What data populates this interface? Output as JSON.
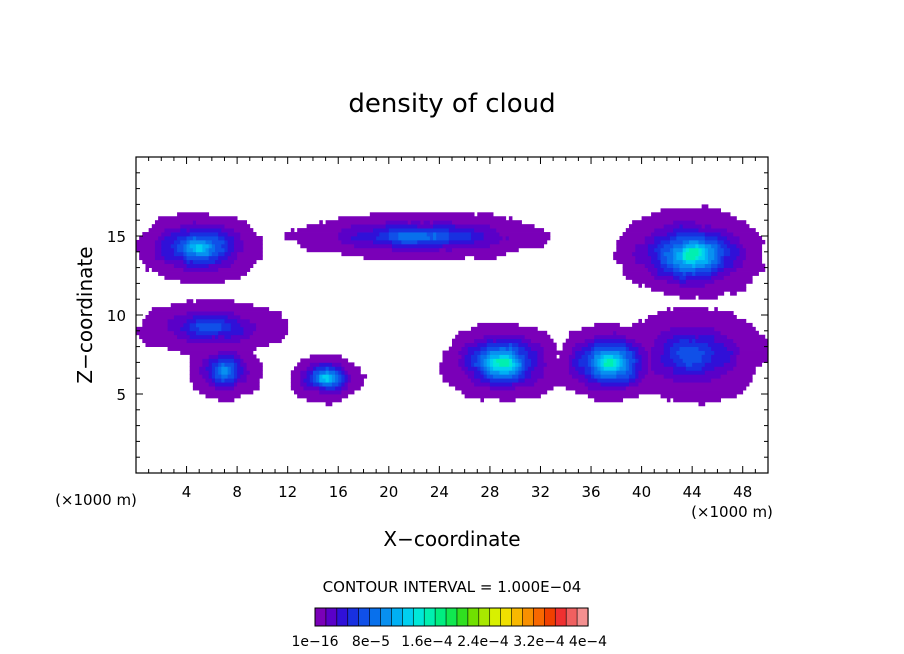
{
  "chart_data": {
    "type": "heatmap",
    "title": "density of cloud",
    "xlabel": "X−coordinate",
    "ylabel": "Z−coordinate",
    "x_unit": "(×1000 m)",
    "x_unit_right": "(×1000 m)",
    "xlim": [
      0,
      50
    ],
    "ylim": [
      0,
      20
    ],
    "x_ticks": [
      4,
      8,
      12,
      16,
      20,
      24,
      28,
      32,
      36,
      40,
      44,
      48
    ],
    "x_tick_labels": [
      "4",
      "8",
      "12",
      "16",
      "20",
      "24",
      "28",
      "32",
      "36",
      "40",
      "44",
      "48"
    ],
    "y_ticks": [
      5,
      10,
      15
    ],
    "y_tick_labels": [
      "5",
      "10",
      "15"
    ],
    "contour_interval_label": "CONTOUR INTERVAL = 1.000E−04",
    "colorbar": {
      "colors": [
        "#7a00b8",
        "#5a00c8",
        "#3010d8",
        "#1830e0",
        "#1050e8",
        "#0870ec",
        "#0890f0",
        "#00b0f4",
        "#00d0f0",
        "#00e8d8",
        "#00f0b0",
        "#00ee80",
        "#10e850",
        "#30e020",
        "#70e000",
        "#a8e800",
        "#d8f000",
        "#f0e000",
        "#f8b800",
        "#f89000",
        "#f86800",
        "#f04000",
        "#f03030",
        "#f06060",
        "#f49090"
      ],
      "labels": [
        "1e−16",
        "8e−5",
        "1.6e−4",
        "2.4e−4",
        "3.2e−4",
        "4e−4"
      ]
    },
    "regions": [
      {
        "name": "upper-left-band",
        "x": [
          0,
          10
        ],
        "z": [
          12,
          16.5
        ],
        "max_level": 8
      },
      {
        "name": "upper-center-band",
        "x": [
          12,
          33
        ],
        "z": [
          13.5,
          16.5
        ],
        "max_level": 5
      },
      {
        "name": "upper-right-band",
        "x": [
          38,
          50
        ],
        "z": [
          11,
          16.8
        ],
        "max_level": 10
      },
      {
        "name": "mid-left-band",
        "x": [
          0,
          12
        ],
        "z": [
          7.5,
          11
        ],
        "max_level": 4
      },
      {
        "name": "left-cell",
        "x": [
          4,
          10
        ],
        "z": [
          4.5,
          8.5
        ],
        "max_level": 6
      },
      {
        "name": "center-left-cell",
        "x": [
          12,
          18
        ],
        "z": [
          4.5,
          7.5
        ],
        "max_level": 8
      },
      {
        "name": "center-cell",
        "x": [
          24,
          34
        ],
        "z": [
          4.5,
          9.5
        ],
        "max_level": 10
      },
      {
        "name": "right-cell",
        "x": [
          33,
          42
        ],
        "z": [
          4.5,
          9.5
        ],
        "max_level": 10
      },
      {
        "name": "lower-right-band",
        "x": [
          38,
          50
        ],
        "z": [
          4.5,
          10.5
        ],
        "max_level": 4
      }
    ]
  },
  "colors": {
    "background": "#ffffff",
    "frame": "#000000"
  }
}
